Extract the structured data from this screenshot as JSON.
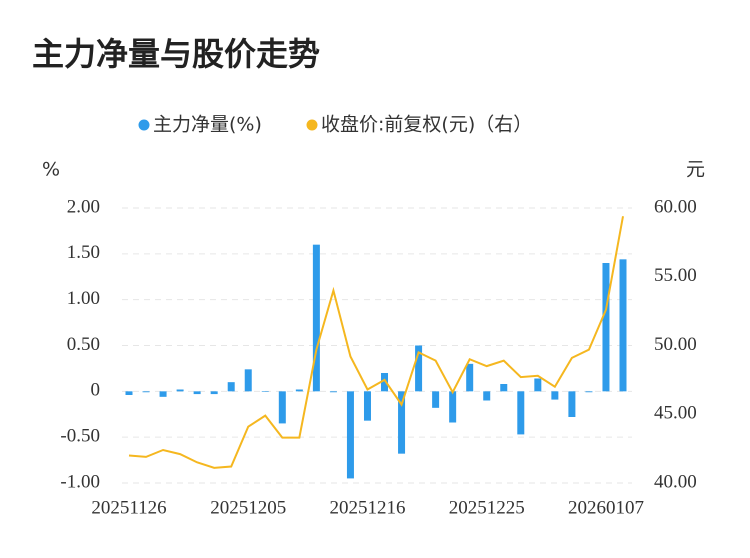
{
  "chart_data": {
    "type": "bar-line",
    "title": "主力净量与股价走势",
    "y_axis_label": "%",
    "y2_axis_label": "元",
    "categories": [
      "20251126",
      null,
      null,
      null,
      null,
      null,
      null,
      "20251205",
      null,
      null,
      null,
      null,
      null,
      null,
      "20251216",
      null,
      null,
      null,
      null,
      null,
      null,
      "20251225",
      null,
      null,
      null,
      null,
      null,
      null,
      "20260107",
      null
    ],
    "series": [
      {
        "name": "主力净量(%)",
        "color": "#2e9bea",
        "type": "bar",
        "values": [
          -0.04,
          -0.01,
          -0.06,
          0.02,
          -0.03,
          -0.03,
          0.1,
          0.24,
          0.0,
          -0.35,
          0.02,
          1.6,
          -0.01,
          -0.95,
          -0.32,
          0.2,
          -0.68,
          0.5,
          -0.18,
          -0.34,
          0.3,
          -0.1,
          0.08,
          -0.47,
          0.14,
          -0.09,
          -0.28,
          -0.01,
          1.4,
          1.44
        ]
      },
      {
        "name": "收盘价:前复权(元)（右）",
        "color": "#f5b71f",
        "type": "line",
        "axis": "y2",
        "values": [
          42.0,
          41.9,
          42.4,
          42.1,
          41.5,
          41.1,
          41.2,
          44.1,
          44.9,
          43.3,
          43.3,
          49.7,
          54.0,
          49.2,
          46.8,
          47.5,
          45.7,
          49.5,
          48.9,
          46.6,
          49.0,
          48.5,
          48.9,
          47.7,
          47.8,
          47.0,
          49.1,
          49.7,
          52.6,
          59.4
        ]
      }
    ],
    "ylim": [
      -1.0,
      2.0
    ],
    "yticks": [
      {
        "value": -1.0,
        "label": "-1.00"
      },
      {
        "value": -0.5,
        "label": "-0.50"
      },
      0,
      {
        "value": 0.5,
        "label": "0.50"
      },
      {
        "value": 1.0,
        "label": "1.00"
      },
      {
        "value": 1.5,
        "label": "1.50"
      },
      {
        "value": 2.0,
        "label": "2.00"
      }
    ],
    "y2lim": [
      40,
      60
    ],
    "y2ticks": [
      {
        "value": 40,
        "label": "40.00"
      },
      {
        "value": 45,
        "label": "45.00"
      },
      {
        "value": 50,
        "label": "50.00"
      },
      {
        "value": 55,
        "label": "55.00"
      },
      {
        "value": 60,
        "label": "60.00"
      }
    ],
    "grid": true,
    "legend": "top"
  }
}
